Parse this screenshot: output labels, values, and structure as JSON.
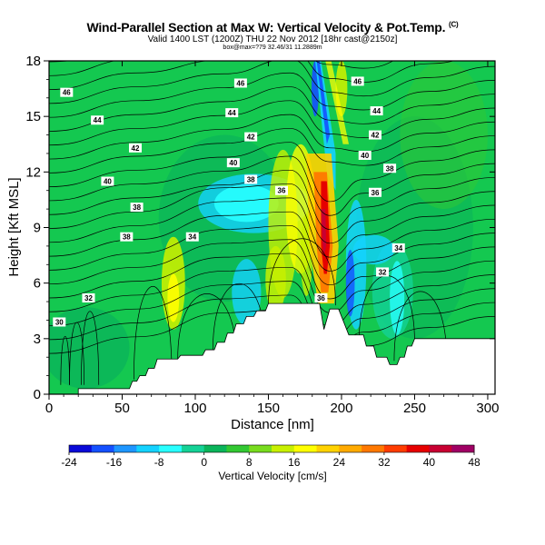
{
  "title": {
    "main": "Wind-Parallel Section at Max W: Vertical Velocity & Pot.Temp.",
    "mark": "(C)",
    "subtitle": "Valid 1400 LST (1200Z) THU 22 Nov 2012 [18hr cast@2150z]",
    "subtitle2": "box@max=?79 32.46/31 11.2889m"
  },
  "chart_data": {
    "type": "heatmap",
    "xlabel": "Distance [nm]",
    "ylabel": "Height [Kft MSL]",
    "xlim": [
      0,
      305
    ],
    "ylim": [
      0,
      18
    ],
    "xticks": [
      0,
      50,
      100,
      150,
      200,
      250,
      300
    ],
    "yticks": [
      0,
      3,
      6,
      9,
      12,
      15,
      18
    ],
    "colorbar": {
      "label": "Vertical Velocity [cm/s]",
      "ticks": [
        -24,
        -16,
        -8,
        0,
        8,
        16,
        24,
        32,
        40,
        48
      ],
      "range": [
        -24,
        48
      ],
      "colors": [
        "#0a0ad8",
        "#1450ff",
        "#1e96ff",
        "#14d2ff",
        "#28ffff",
        "#14d296",
        "#0ab45a",
        "#32c832",
        "#78dc1e",
        "#c8f000",
        "#ffff00",
        "#ffd200",
        "#ffaa00",
        "#ff7800",
        "#ff3c00",
        "#e60000",
        "#c80032",
        "#a00064"
      ]
    },
    "terrain": [
      [
        0,
        0
      ],
      [
        20,
        0
      ],
      [
        20,
        0.3
      ],
      [
        55,
        0.3
      ],
      [
        57,
        0.7
      ],
      [
        60,
        0.7
      ],
      [
        62,
        1
      ],
      [
        66,
        1
      ],
      [
        68,
        1.4
      ],
      [
        72,
        1.4
      ],
      [
        74,
        1.9
      ],
      [
        88,
        1.9
      ],
      [
        90,
        2.1
      ],
      [
        105,
        2.1
      ],
      [
        107,
        2.4
      ],
      [
        113,
        2.4
      ],
      [
        115,
        2.8
      ],
      [
        120,
        2.8
      ],
      [
        122,
        3.3
      ],
      [
        126,
        3.3
      ],
      [
        128,
        3.8
      ],
      [
        133,
        3.8
      ],
      [
        135,
        4.2
      ],
      [
        140,
        4.2
      ],
      [
        142,
        4.5
      ],
      [
        148,
        4.5
      ],
      [
        150,
        4.9
      ],
      [
        185,
        4.9
      ],
      [
        188,
        3.5
      ],
      [
        192,
        4.6
      ],
      [
        198,
        4.6
      ],
      [
        205,
        3.2
      ],
      [
        215,
        3.2
      ],
      [
        217,
        2.6
      ],
      [
        222,
        2.6
      ],
      [
        224,
        2.0
      ],
      [
        231,
        2.0
      ],
      [
        233,
        1.6
      ],
      [
        238,
        1.6
      ],
      [
        240,
        2.0
      ],
      [
        243,
        2.0
      ],
      [
        245,
        2.6
      ],
      [
        248,
        2.6
      ],
      [
        250,
        3.0
      ],
      [
        305,
        3.0
      ],
      [
        305,
        0
      ]
    ],
    "contour_labels": [
      {
        "text": "46",
        "x": 12,
        "y": 16.3
      },
      {
        "text": "46",
        "x": 131,
        "y": 16.8
      },
      {
        "text": "46",
        "x": 211,
        "y": 16.9
      },
      {
        "text": "44",
        "x": 33,
        "y": 14.8
      },
      {
        "text": "44",
        "x": 125,
        "y": 15.2
      },
      {
        "text": "44",
        "x": 224,
        "y": 15.3
      },
      {
        "text": "42",
        "x": 59,
        "y": 13.3
      },
      {
        "text": "42",
        "x": 138,
        "y": 13.9
      },
      {
        "text": "42",
        "x": 223,
        "y": 14.0
      },
      {
        "text": "40",
        "x": 40,
        "y": 11.5
      },
      {
        "text": "40",
        "x": 126,
        "y": 12.5
      },
      {
        "text": "40",
        "x": 216,
        "y": 12.9
      },
      {
        "text": "38",
        "x": 60,
        "y": 10.1
      },
      {
        "text": "38",
        "x": 138,
        "y": 11.6
      },
      {
        "text": "38",
        "x": 233,
        "y": 12.2
      },
      {
        "text": "38",
        "x": 53,
        "y": 8.5
      },
      {
        "text": "36",
        "x": 159,
        "y": 11.0
      },
      {
        "text": "36",
        "x": 223,
        "y": 10.9
      },
      {
        "text": "34",
        "x": 98,
        "y": 8.5
      },
      {
        "text": "34",
        "x": 239,
        "y": 7.9
      },
      {
        "text": "32",
        "x": 27,
        "y": 5.2
      },
      {
        "text": "32",
        "x": 228,
        "y": 6.6
      },
      {
        "text": "30",
        "x": 7,
        "y": 3.9
      },
      {
        "text": "36",
        "x": 186,
        "y": 5.2
      }
    ],
    "grid": false
  }
}
